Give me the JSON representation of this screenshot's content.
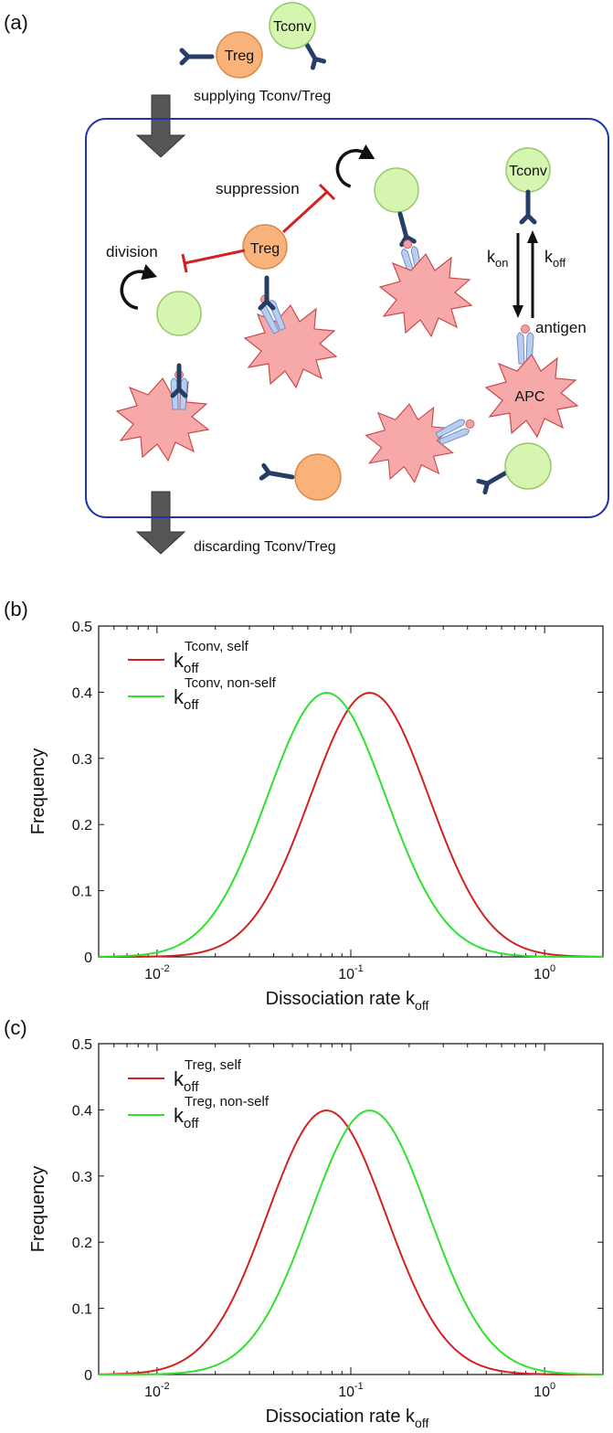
{
  "panel_a": {
    "label": "(a)",
    "supply_text": "supplying Tconv/Treg",
    "discard_text": "discarding Tconv/Treg",
    "treg_label": "Treg",
    "tconv_label": "Tconv",
    "suppression_label": "suppression",
    "division_label": "division",
    "antigen_label": "antigen",
    "apc_label": "APC",
    "k_symbol": "k",
    "on_sub": "on",
    "off_sub": "off",
    "colors": {
      "tconv_fill": "#d6f5b0",
      "treg_fill": "#f9b27a",
      "apc_fill": "#f7a9a9",
      "inhibit": "#d42020",
      "box": "#1f35b0",
      "arrow": "#555555"
    }
  },
  "chart_data": [
    {
      "type": "line",
      "panel_label": "(b)",
      "xlabel": "Dissociation rate k",
      "xlabel_sub": "off",
      "ylabel": "Frequency",
      "xscale": "log",
      "xlim": [
        0.005,
        2.0
      ],
      "ylim": [
        0,
        0.5
      ],
      "yticks": [
        "0",
        "0.1",
        "0.2",
        "0.3",
        "0.4",
        "0.5"
      ],
      "ytick_values": [
        0,
        0.1,
        0.2,
        0.3,
        0.4,
        0.5
      ],
      "xticks": [
        {
          "value": 0.01,
          "base": "10",
          "exp": "-2"
        },
        {
          "value": 0.1,
          "base": "10",
          "exp": "-1"
        },
        {
          "value": 1.0,
          "base": "10",
          "exp": "0"
        }
      ],
      "series": [
        {
          "name": "k_off^{Tconv, self}",
          "base": "k",
          "sub": "off",
          "sup": "Tconv, self",
          "color": "#d42020",
          "peak_x": 0.125,
          "peak_y": 0.399,
          "sigma_log10": 0.306
        },
        {
          "name": "k_off^{Tconv, non-self}",
          "base": "k",
          "sub": "off",
          "sup": "Tconv, non-self",
          "color": "#2fe02f",
          "peak_x": 0.075,
          "peak_y": 0.399,
          "sigma_log10": 0.306
        }
      ]
    },
    {
      "type": "line",
      "panel_label": "(c)",
      "xlabel": "Dissociation rate k",
      "xlabel_sub": "off",
      "ylabel": "Frequency",
      "xscale": "log",
      "xlim": [
        0.005,
        2.0
      ],
      "ylim": [
        0,
        0.5
      ],
      "yticks": [
        "0",
        "0.1",
        "0.2",
        "0.3",
        "0.4",
        "0.5"
      ],
      "ytick_values": [
        0,
        0.1,
        0.2,
        0.3,
        0.4,
        0.5
      ],
      "xticks": [
        {
          "value": 0.01,
          "base": "10",
          "exp": "-2"
        },
        {
          "value": 0.1,
          "base": "10",
          "exp": "-1"
        },
        {
          "value": 1.0,
          "base": "10",
          "exp": "0"
        }
      ],
      "series": [
        {
          "name": "k_off^{Treg, self}",
          "base": "k",
          "sub": "off",
          "sup": "Treg, self",
          "color": "#d42020",
          "peak_x": 0.075,
          "peak_y": 0.399,
          "sigma_log10": 0.306
        },
        {
          "name": "k_off^{Treg, non-self}",
          "base": "k",
          "sub": "off",
          "sup": "Treg, non-self",
          "color": "#2fe02f",
          "peak_x": 0.125,
          "peak_y": 0.399,
          "sigma_log10": 0.306
        }
      ]
    }
  ]
}
